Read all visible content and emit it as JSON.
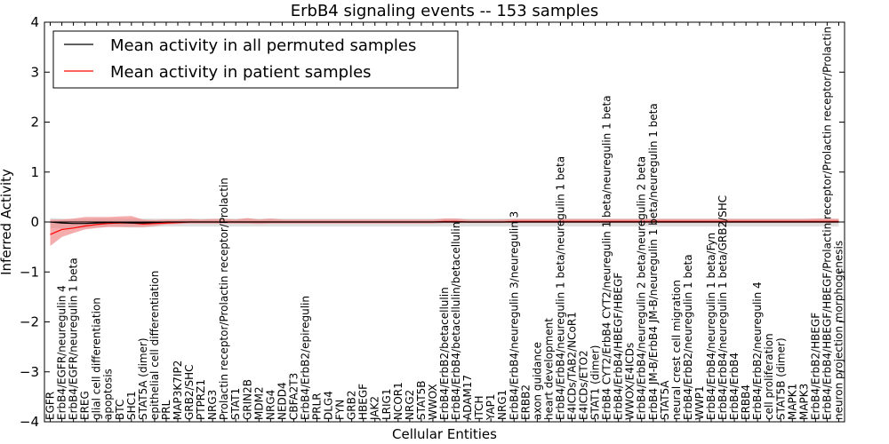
{
  "chart_data": {
    "type": "line",
    "title": "ErbB4 signaling events -- 153 samples",
    "xlabel": "Cellular Entities",
    "ylabel": "Inferred Activity",
    "ylim": [
      -4,
      4
    ],
    "yticks": [
      -4,
      -3,
      -2,
      -1,
      0,
      1,
      2,
      3,
      4
    ],
    "ytick_labels": [
      "−4",
      "−3",
      "−2",
      "−1",
      "0",
      "1",
      "2",
      "3",
      "4"
    ],
    "grid": false,
    "legend_position": "top-left",
    "categories": [
      "EGFR",
      "ErbB4/EGFR/neuregulin 4",
      "ErbB4/EGFR/neuregulin 1 beta",
      "EREG",
      "glial cell differentiation",
      "apoptosis",
      "BTC",
      "SHC1",
      "STAT5A (dimer)",
      "epithelial cell differentiation",
      "PRL",
      "MAP3K7IP2",
      "GRB2/SHC",
      "PTPRZ1",
      "NRG3",
      "Prolactin receptor/Prolactin receptor/Prolactin",
      "STAT1",
      "GRIN2B",
      "MDM2",
      "NRG4",
      "NEDD4",
      "CBFA2T3",
      "ErbB4/ErbB2/epiregulin",
      "PRLR",
      "DLG4",
      "FYN",
      "GRB2",
      "HBEGF",
      "JAK2",
      "LRIG1",
      "NCOR1",
      "NRG2",
      "STAT5B",
      "WWOX",
      "ErbB4/ErbB2/betacellulin",
      "ErbB4/ErbB4/betacellulin/betacellulin",
      "ADAM17",
      "ITCH",
      "YAP1",
      "NRG1",
      "ErbB4/ErbB4/neuregulin 3/neuregulin 3",
      "ERBB2",
      "axon guidance",
      "heart development",
      "ErbB4/ErbB4/neuregulin 1 beta/neuregulin 1 beta",
      "E4ICDs/TAB2/NCoR1",
      "E4ICDs/ETO2",
      "STAT1 (dimer)",
      "ErbB4 CYT2/ErbB4 CYT2/neuregulin 1 beta/neuregulin 1 beta",
      "ErbB4/ErbB4/HBEGF/HBEGF",
      "WWOX/E4ICDs",
      "ErbB4/ErbB4/neuregulin 2 beta/neuregulin 2 beta",
      "ErbB4 JM-B/ErbB4 JM-B/neuregulin 1 beta/neuregulin 1 beta",
      "STAT5A",
      "neural crest cell migration",
      "ErbB4/ErbB2/neuregulin 1 beta",
      "WWP1",
      "ErbB4/ErbB4/neuregulin 1 beta/Fyn",
      "ErbB4/ErbB4/neuregulin 1 beta/GRB2/SHC",
      "ErbB4/ErbB4",
      "ERBB4",
      "ErbB4/ErbB2/neuregulin 4",
      "cell proliferation",
      "STAT5B (dimer)",
      "MAPK1",
      "MAPK3",
      "ErbB4/ErbB2/HBEGF",
      "ErbB4/ErbB4/HBEGF/HBEGF/Prolactin receptor/Prolactin receptor/Prolactin",
      "neuron projection morphogenesis"
    ],
    "series": [
      {
        "name": "Mean activity in all permuted samples",
        "color": "#000000",
        "values": [
          0,
          -0.02,
          -0.03,
          -0.03,
          -0.02,
          -0.01,
          -0.01,
          -0.02,
          -0.02,
          -0.01,
          0,
          0,
          0,
          0,
          0,
          0,
          0,
          0,
          0,
          0,
          0,
          0,
          0,
          0,
          0,
          0,
          0,
          0,
          0,
          0,
          0,
          0,
          0,
          0,
          0,
          0,
          0,
          0,
          0,
          0,
          0,
          0,
          0,
          0,
          0,
          0,
          0,
          0,
          0,
          0,
          0,
          0,
          0,
          0,
          0,
          0,
          0,
          0,
          0,
          0,
          0,
          0,
          0,
          0,
          0,
          0,
          0,
          0,
          0
        ],
        "band_lower": [
          -0.12,
          -0.13,
          -0.13,
          -0.12,
          -0.11,
          -0.1,
          -0.1,
          -0.11,
          -0.11,
          -0.1,
          -0.09,
          -0.09,
          -0.09,
          -0.09,
          -0.09,
          -0.09,
          -0.09,
          -0.09,
          -0.09,
          -0.09,
          -0.09,
          -0.09,
          -0.09,
          -0.09,
          -0.09,
          -0.09,
          -0.09,
          -0.09,
          -0.09,
          -0.09,
          -0.09,
          -0.09,
          -0.09,
          -0.09,
          -0.09,
          -0.09,
          -0.09,
          -0.09,
          -0.09,
          -0.09,
          -0.09,
          -0.09,
          -0.09,
          -0.09,
          -0.09,
          -0.09,
          -0.09,
          -0.09,
          -0.09,
          -0.09,
          -0.09,
          -0.09,
          -0.09,
          -0.09,
          -0.09,
          -0.09,
          -0.09,
          -0.09,
          -0.09,
          -0.09,
          -0.09,
          -0.09,
          -0.09,
          -0.09,
          -0.09,
          -0.09,
          -0.09,
          -0.09,
          -0.09
        ],
        "band_upper": [
          0.08,
          0.07,
          0.06,
          0.06,
          0.07,
          0.07,
          0.07,
          0.07,
          0.07,
          0.07,
          0.07,
          0.07,
          0.07,
          0.07,
          0.07,
          0.07,
          0.07,
          0.07,
          0.07,
          0.07,
          0.07,
          0.07,
          0.07,
          0.07,
          0.07,
          0.07,
          0.07,
          0.07,
          0.07,
          0.07,
          0.07,
          0.07,
          0.07,
          0.07,
          0.07,
          0.07,
          0.07,
          0.07,
          0.07,
          0.07,
          0.07,
          0.07,
          0.07,
          0.07,
          0.07,
          0.07,
          0.07,
          0.07,
          0.07,
          0.07,
          0.07,
          0.07,
          0.07,
          0.07,
          0.07,
          0.07,
          0.07,
          0.07,
          0.07,
          0.07,
          0.07,
          0.07,
          0.07,
          0.07,
          0.07,
          0.07,
          0.07,
          0.07,
          0.07
        ]
      },
      {
        "name": "Mean activity in patient samples",
        "color": "#ff0000",
        "band_color": "#f08080",
        "values": [
          -0.25,
          -0.15,
          -0.12,
          -0.08,
          -0.05,
          -0.03,
          -0.02,
          -0.02,
          -0.04,
          -0.03,
          -0.02,
          -0.01,
          0,
          0,
          0,
          0,
          0,
          0,
          0,
          0,
          0,
          0,
          0,
          0,
          0,
          0,
          0,
          0,
          0,
          0,
          0,
          0,
          0,
          0,
          0.01,
          0.01,
          0,
          0,
          0,
          0,
          0.01,
          0.01,
          0.01,
          0.01,
          0.01,
          0.01,
          0.01,
          0.01,
          0.01,
          0.01,
          0.01,
          0.01,
          0.01,
          0.01,
          0.01,
          0.01,
          0.01,
          0.01,
          0.01,
          0.01,
          0.01,
          0.01,
          0.01,
          0.01,
          0.01,
          0.01,
          0.01,
          0.01,
          0.01
        ],
        "band_lower": [
          -0.48,
          -0.3,
          -0.22,
          -0.15,
          -0.12,
          -0.1,
          -0.1,
          -0.1,
          -0.1,
          -0.08,
          -0.05,
          -0.04,
          -0.03,
          -0.03,
          -0.03,
          -0.03,
          -0.03,
          -0.03,
          -0.04,
          -0.03,
          -0.03,
          -0.03,
          -0.03,
          -0.03,
          -0.03,
          -0.03,
          -0.03,
          -0.03,
          -0.03,
          -0.03,
          -0.03,
          -0.03,
          -0.03,
          -0.03,
          -0.02,
          -0.02,
          -0.02,
          -0.02,
          -0.02,
          -0.02,
          -0.02,
          -0.02,
          -0.02,
          -0.02,
          -0.02,
          -0.02,
          -0.02,
          -0.02,
          -0.02,
          -0.02,
          -0.02,
          -0.02,
          -0.02,
          -0.02,
          -0.02,
          -0.02,
          -0.02,
          -0.02,
          -0.02,
          -0.02,
          -0.02,
          -0.02,
          -0.02,
          -0.02,
          -0.02,
          -0.02,
          -0.02,
          -0.02,
          -0.02
        ],
        "band_upper": [
          0.05,
          0.05,
          0.07,
          0.1,
          0.1,
          0.1,
          0.11,
          0.12,
          0.05,
          0.04,
          0.05,
          0.05,
          0.06,
          0.05,
          0.06,
          0.06,
          0.05,
          0.08,
          0.05,
          0.07,
          0.05,
          0.05,
          0.05,
          0.05,
          0.05,
          0.05,
          0.05,
          0.05,
          0.05,
          0.05,
          0.05,
          0.05,
          0.05,
          0.05,
          0.07,
          0.07,
          0.05,
          0.05,
          0.05,
          0.05,
          0.06,
          0.06,
          0.06,
          0.06,
          0.06,
          0.06,
          0.06,
          0.06,
          0.06,
          0.06,
          0.06,
          0.06,
          0.06,
          0.06,
          0.06,
          0.06,
          0.06,
          0.06,
          0.06,
          0.06,
          0.06,
          0.06,
          0.06,
          0.06,
          0.06,
          0.06,
          0.07,
          0.07,
          0.06
        ]
      }
    ]
  }
}
